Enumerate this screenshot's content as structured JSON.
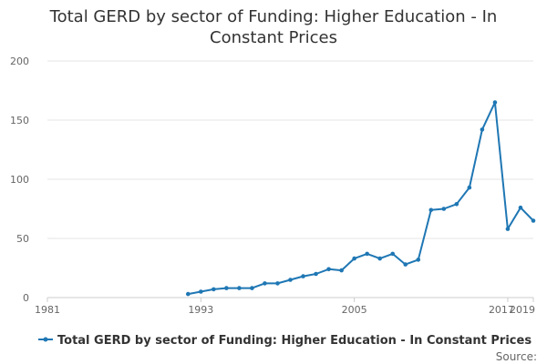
{
  "chart_data": {
    "type": "line",
    "title": "Total GERD by sector of Funding: Higher Education - In Constant Prices",
    "title_lines": [
      "Total GERD by sector of Funding: Higher Education - In",
      "Constant Prices"
    ],
    "xlabel": "",
    "ylabel": "",
    "xlim": [
      1981,
      2019
    ],
    "ylim": [
      0,
      200
    ],
    "yticks": [
      0,
      50,
      100,
      150,
      200
    ],
    "xticks": [
      1981,
      1993,
      2005,
      2017,
      2019
    ],
    "xtick_labels": [
      "1981",
      "1993",
      "2005",
      "2017",
      "2019"
    ],
    "grid": "horizontal",
    "legend_position": "bottom",
    "series": [
      {
        "name": "Total GERD by sector of Funding: Higher Education - In Constant Prices",
        "color": "#1f77b4",
        "x": [
          1992,
          1993,
          1994,
          1995,
          1996,
          1997,
          1998,
          1999,
          2000,
          2001,
          2002,
          2003,
          2004,
          2005,
          2006,
          2007,
          2008,
          2009,
          2010,
          2011,
          2012,
          2013,
          2014,
          2015,
          2016,
          2017,
          2018,
          2019
        ],
        "values": [
          3,
          5,
          7,
          8,
          8,
          8,
          12,
          12,
          15,
          18,
          20,
          24,
          23,
          33,
          37,
          33,
          37,
          28,
          32,
          74,
          75,
          79,
          93,
          142,
          165,
          58,
          76,
          65
        ]
      }
    ]
  },
  "source_label": "Source:"
}
